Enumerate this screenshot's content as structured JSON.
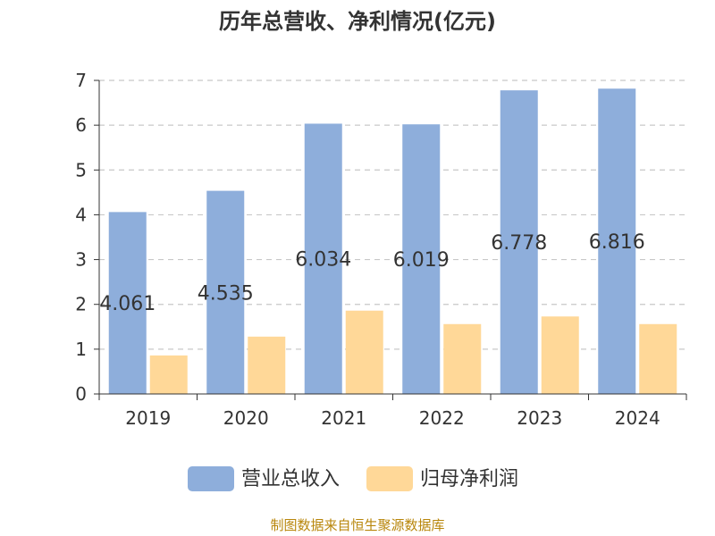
{
  "title": "历年总营收、净利情况(亿元)",
  "source_note": "制图数据来自恒生聚源数据库",
  "colors": {
    "revenue": "#8eaedb",
    "profit": "#ffd898",
    "grid": "#c8c8c8",
    "axis": "#333333"
  },
  "chart_data": {
    "type": "bar",
    "title": "历年总营收、净利情况(亿元)",
    "categories": [
      "2019",
      "2020",
      "2021",
      "2022",
      "2023",
      "2024"
    ],
    "ylim": [
      0,
      7
    ],
    "yticks": [
      0,
      1,
      2,
      3,
      4,
      5,
      6,
      7
    ],
    "grid": true,
    "legend_position": "bottom",
    "series": [
      {
        "name": "营业总收入",
        "values": [
          4.061,
          4.535,
          6.034,
          6.019,
          6.778,
          6.816
        ],
        "labels": [
          "4.061",
          "4.535",
          "6.034",
          "6.019",
          "6.778",
          "6.816"
        ]
      },
      {
        "name": "归母净利润",
        "values": [
          0.86,
          1.28,
          1.86,
          1.56,
          1.73,
          1.56
        ]
      }
    ]
  }
}
